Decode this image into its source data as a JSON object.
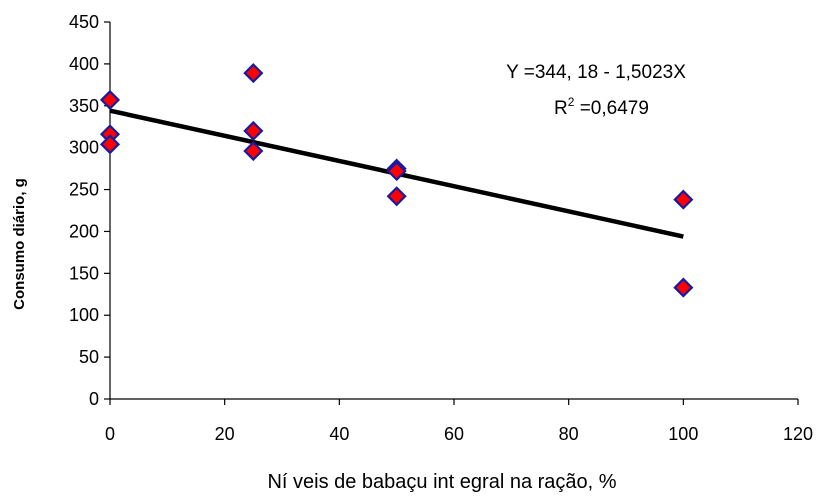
{
  "chart_data": {
    "type": "scatter",
    "title": "",
    "xlabel": "Ní veis de babaçu int egral na ração, %",
    "ylabel": "Consumo diário, g",
    "xlim": [
      0,
      120
    ],
    "ylim": [
      0,
      450
    ],
    "xticks": [
      0,
      20,
      40,
      60,
      80,
      100,
      120
    ],
    "yticks": [
      0,
      50,
      100,
      150,
      200,
      250,
      300,
      350,
      400,
      450
    ],
    "grid": false,
    "legend": "none",
    "series": [
      {
        "marker": "diamond",
        "color": "#ff0000",
        "edge_color": "#1a1aa0",
        "points": [
          {
            "x": 0,
            "y": 357
          },
          {
            "x": 0,
            "y": 316
          },
          {
            "x": 0,
            "y": 304
          },
          {
            "x": 25,
            "y": 389
          },
          {
            "x": 25,
            "y": 320
          },
          {
            "x": 25,
            "y": 296
          },
          {
            "x": 50,
            "y": 275
          },
          {
            "x": 50,
            "y": 272
          },
          {
            "x": 50,
            "y": 242
          },
          {
            "x": 100,
            "y": 238
          },
          {
            "x": 100,
            "y": 133
          }
        ]
      }
    ],
    "trendline": {
      "intercept": 344.18,
      "slope": -1.5023,
      "x_range": [
        0,
        100
      ],
      "color": "#000000"
    },
    "annotations": {
      "equation": "Y =344, 18 - 1,5023X",
      "r2_prefix": "R",
      "r2_exponent": "2",
      "r2_value": " =0,6479"
    }
  }
}
